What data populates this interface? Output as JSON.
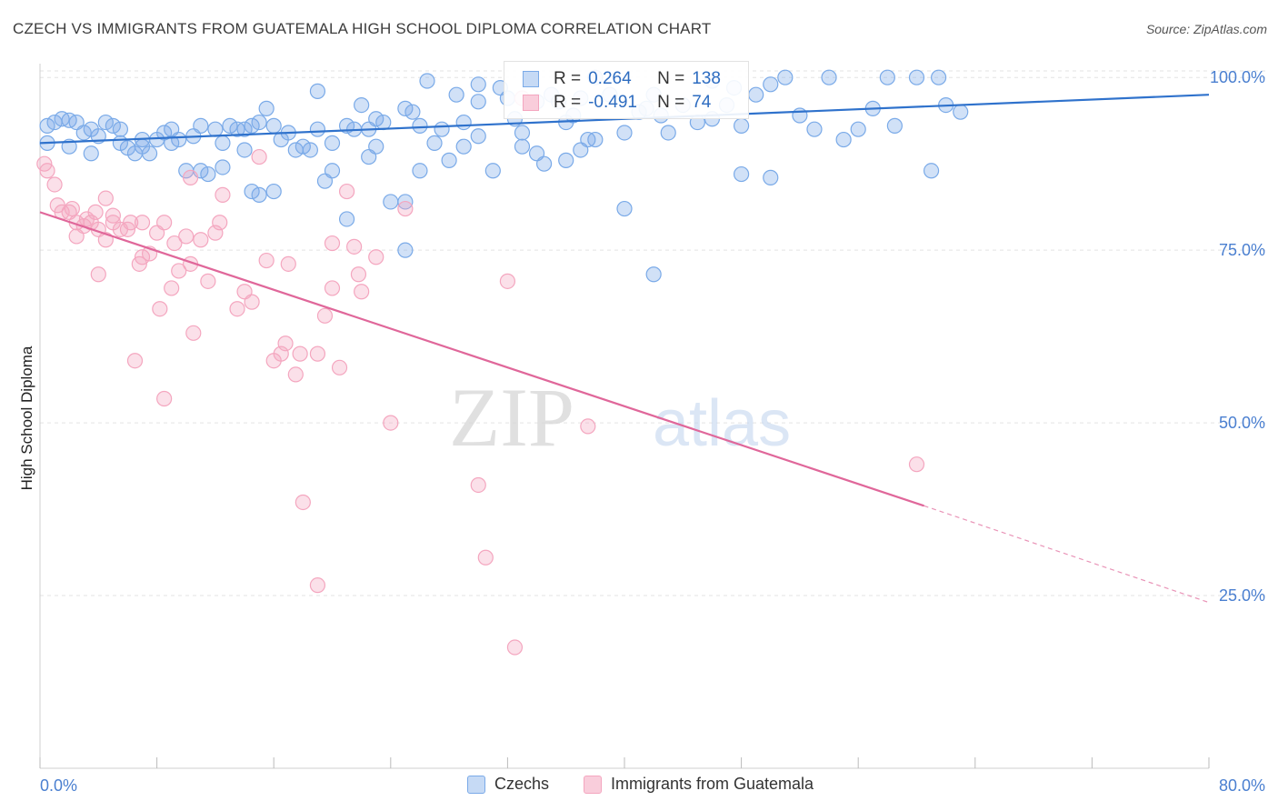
{
  "title": "CZECH VS IMMIGRANTS FROM GUATEMALA HIGH SCHOOL DIPLOMA CORRELATION CHART",
  "source": "Source: ZipAtlas.com",
  "watermark": {
    "zip": "ZIP",
    "atlas": "atlas"
  },
  "legend": {
    "rows": [
      {
        "r_label": "R =",
        "r_value": "0.264",
        "n_label": "N =",
        "n_value": "138"
      },
      {
        "r_label": "R =",
        "r_value": "-0.491",
        "n_label": "N =",
        "n_value": "74"
      }
    ]
  },
  "bottom_legend": [
    "Czechs",
    "Immigrants from Guatemala"
  ],
  "chart_data": {
    "type": "scatter",
    "ylabel": "High School Diploma",
    "xlim": [
      0,
      80
    ],
    "ylim": [
      0,
      102
    ],
    "x_tick_labels": [
      {
        "x": 0,
        "label": "0.0%"
      },
      {
        "x": 80,
        "label": "80.0%"
      }
    ],
    "y_tick_labels": [
      {
        "y": 100,
        "label": "100.0%"
      },
      {
        "y": 75,
        "label": "75.0%"
      },
      {
        "y": 50,
        "label": "50.0%"
      },
      {
        "y": 25,
        "label": "25.0%"
      }
    ],
    "grid": true,
    "colors": {
      "czechs": "#7aaae8",
      "guatemala": "#f4a6bf",
      "czechs_line": "#2f72cc",
      "guatemala_line": "#e0679a",
      "tick_label": "#4a7fd0"
    },
    "series": [
      {
        "name": "Czechs",
        "trend": {
          "x0": 0,
          "y0": 90.5,
          "x1": 80,
          "y1": 97.5
        },
        "points": [
          [
            0.5,
            93
          ],
          [
            1,
            93.5
          ],
          [
            1.5,
            94
          ],
          [
            2,
            93.8
          ],
          [
            2.5,
            93.5
          ],
          [
            3,
            92
          ],
          [
            3.5,
            92.5
          ],
          [
            4,
            91.5
          ],
          [
            4.5,
            93.5
          ],
          [
            5,
            93
          ],
          [
            5.5,
            92.5
          ],
          [
            6,
            89.8
          ],
          [
            6.5,
            89
          ],
          [
            7,
            91
          ],
          [
            7.5,
            89
          ],
          [
            8,
            91
          ],
          [
            8.5,
            92
          ],
          [
            9,
            92.5
          ],
          [
            9.5,
            91
          ],
          [
            10,
            86.5
          ],
          [
            11,
            93
          ],
          [
            11,
            86.5
          ],
          [
            11.5,
            86
          ],
          [
            12,
            92.5
          ],
          [
            12.5,
            90.5
          ],
          [
            12.5,
            87
          ],
          [
            13,
            93
          ],
          [
            13.5,
            92.5
          ],
          [
            14,
            92.5
          ],
          [
            14.5,
            93
          ],
          [
            15,
            93.5
          ],
          [
            14.5,
            83.5
          ],
          [
            15,
            83
          ],
          [
            15.5,
            95.5
          ],
          [
            16,
            93
          ],
          [
            16,
            83.5
          ],
          [
            17,
            92
          ],
          [
            17.5,
            89.5
          ],
          [
            18,
            90
          ],
          [
            18.5,
            89.5
          ],
          [
            19,
            98
          ],
          [
            19,
            92.5
          ],
          [
            20,
            90.5
          ],
          [
            20,
            86.5
          ],
          [
            19.5,
            85
          ],
          [
            21,
            93
          ],
          [
            21,
            79.5
          ],
          [
            21.5,
            92.5
          ],
          [
            22,
            96
          ],
          [
            22.5,
            88.5
          ],
          [
            22.5,
            92.5
          ],
          [
            23,
            94
          ],
          [
            23.5,
            93.5
          ],
          [
            24,
            82
          ],
          [
            25,
            82
          ],
          [
            25,
            95.5
          ],
          [
            25.5,
            95
          ],
          [
            25,
            75
          ],
          [
            26,
            86.5
          ],
          [
            26.5,
            99.5
          ],
          [
            27,
            90.5
          ],
          [
            27.5,
            92.5
          ],
          [
            28,
            88
          ],
          [
            28.5,
            97.5
          ],
          [
            29,
            93.5
          ],
          [
            29,
            90
          ],
          [
            30,
            99
          ],
          [
            30,
            96.5
          ],
          [
            31,
            86.5
          ],
          [
            31.5,
            98.5
          ],
          [
            32,
            97
          ],
          [
            32.5,
            94
          ],
          [
            33,
            92
          ],
          [
            34,
            89
          ],
          [
            34,
            96.5
          ],
          [
            34.5,
            87.5
          ],
          [
            35,
            97.5
          ],
          [
            35.5,
            96.5
          ],
          [
            36,
            93.5
          ],
          [
            36,
            88
          ],
          [
            36.5,
            94.5
          ],
          [
            37,
            89.5
          ],
          [
            37,
            97
          ],
          [
            38,
            100
          ],
          [
            38,
            91
          ],
          [
            39,
            97.5
          ],
          [
            40,
            92
          ],
          [
            41,
            95
          ],
          [
            40,
            81
          ],
          [
            41.5,
            95.5
          ],
          [
            42,
            97.5
          ],
          [
            42,
            71.5
          ],
          [
            43,
            92
          ],
          [
            44,
            96
          ],
          [
            45,
            93.5
          ],
          [
            46,
            99.5
          ],
          [
            46,
            94
          ],
          [
            47,
            96
          ],
          [
            47.5,
            98.5
          ],
          [
            48,
            93
          ],
          [
            48,
            86
          ],
          [
            49,
            97.5
          ],
          [
            50,
            99
          ],
          [
            50,
            85.5
          ],
          [
            51,
            100
          ],
          [
            53,
            92.5
          ],
          [
            54,
            100
          ],
          [
            56,
            92.5
          ],
          [
            57,
            95.5
          ],
          [
            58,
            100
          ],
          [
            60,
            100
          ],
          [
            61,
            86.5
          ],
          [
            61.5,
            100
          ],
          [
            0.5,
            90.5
          ],
          [
            2,
            90
          ],
          [
            3.5,
            89
          ],
          [
            5.5,
            90.5
          ],
          [
            7,
            90
          ],
          [
            9,
            90.5
          ],
          [
            10.5,
            91.5
          ],
          [
            14,
            89.5
          ],
          [
            16.5,
            91
          ],
          [
            23,
            90
          ],
          [
            26,
            93
          ],
          [
            30,
            91.5
          ],
          [
            33,
            90
          ],
          [
            37.5,
            91
          ],
          [
            42.5,
            94.5
          ],
          [
            52,
            94.5
          ],
          [
            55,
            91
          ],
          [
            58.5,
            93
          ],
          [
            62,
            96
          ],
          [
            63,
            95
          ]
        ]
      },
      {
        "name": "Immigrants from Guatemala",
        "trend": {
          "x0": 0,
          "y0": 80.5,
          "x1": 60.5,
          "y1": 38,
          "dash_to_x": 80,
          "dash_to_y": 24
        },
        "points": [
          [
            0.3,
            87.5
          ],
          [
            0.5,
            86.5
          ],
          [
            1,
            84.5
          ],
          [
            1.2,
            81.5
          ],
          [
            1.5,
            80.5
          ],
          [
            2,
            80.5
          ],
          [
            2.2,
            81
          ],
          [
            2.5,
            79
          ],
          [
            3,
            78.5
          ],
          [
            3.2,
            79.5
          ],
          [
            3.5,
            79
          ],
          [
            3.8,
            80.5
          ],
          [
            4,
            78
          ],
          [
            4.5,
            82.5
          ],
          [
            4.5,
            76.5
          ],
          [
            5,
            79
          ],
          [
            5,
            80
          ],
          [
            5.5,
            78
          ],
          [
            6,
            78
          ],
          [
            6.2,
            79
          ],
          [
            6.8,
            73
          ],
          [
            7,
            74
          ],
          [
            7,
            79
          ],
          [
            7.5,
            74.5
          ],
          [
            8,
            77.5
          ],
          [
            8.2,
            66.5
          ],
          [
            8.5,
            79
          ],
          [
            9,
            69.5
          ],
          [
            9.2,
            76
          ],
          [
            9.5,
            72
          ],
          [
            10,
            77
          ],
          [
            10.3,
            73
          ],
          [
            10.5,
            63
          ],
          [
            11,
            76.5
          ],
          [
            11.5,
            70.5
          ],
          [
            12,
            77.5
          ],
          [
            12.3,
            79
          ],
          [
            12.5,
            83
          ],
          [
            13.5,
            66.5
          ],
          [
            14,
            69
          ],
          [
            14.5,
            67.5
          ],
          [
            15,
            88.5
          ],
          [
            15.5,
            73.5
          ],
          [
            16,
            59
          ],
          [
            16.5,
            60
          ],
          [
            16.8,
            61.5
          ],
          [
            17,
            73
          ],
          [
            17.5,
            57
          ],
          [
            17.8,
            60
          ],
          [
            18,
            38.5
          ],
          [
            19,
            60
          ],
          [
            19,
            26.5
          ],
          [
            19.5,
            65.5
          ],
          [
            20,
            69.5
          ],
          [
            20,
            76
          ],
          [
            20.5,
            58
          ],
          [
            21,
            83.5
          ],
          [
            21.5,
            75.5
          ],
          [
            21.8,
            71.5
          ],
          [
            22,
            69
          ],
          [
            23,
            74
          ],
          [
            24,
            50
          ],
          [
            25,
            81
          ],
          [
            30,
            41
          ],
          [
            30.5,
            30.5
          ],
          [
            32,
            70.5
          ],
          [
            32.5,
            17.5
          ],
          [
            33,
            97
          ],
          [
            37.5,
            49.5
          ],
          [
            60,
            44
          ],
          [
            6.5,
            59
          ],
          [
            8.5,
            53.5
          ],
          [
            10.3,
            85.5
          ],
          [
            4,
            71.5
          ],
          [
            2.5,
            77
          ]
        ]
      }
    ]
  }
}
